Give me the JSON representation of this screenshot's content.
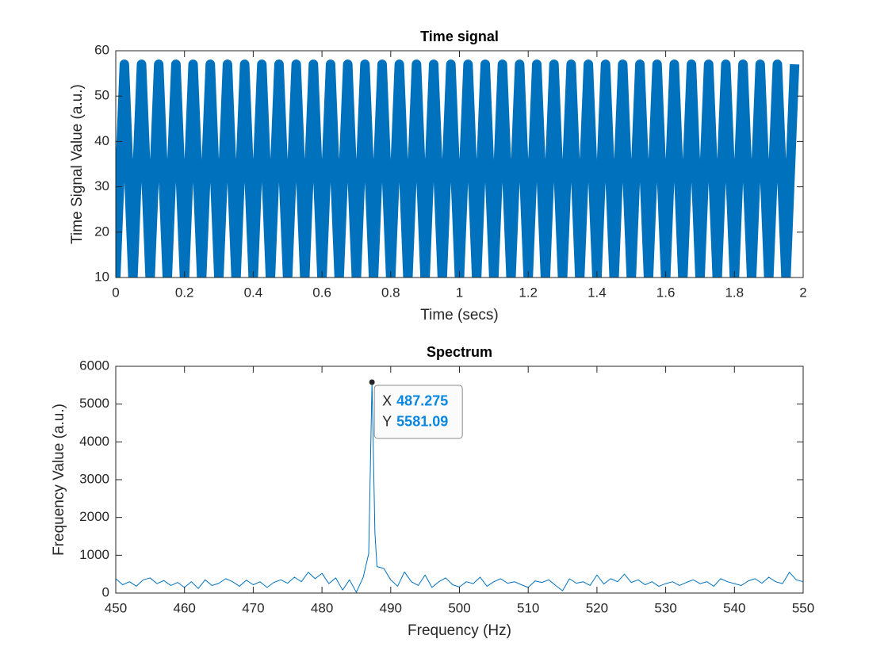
{
  "chart_data": [
    {
      "type": "line",
      "title": "Time signal",
      "x_label": "Time (secs)",
      "y_label": "Time Signal Value (a.u.)",
      "x": [
        0,
        0.025,
        0.05,
        0.075,
        0.1,
        0.125,
        0.15,
        0.175,
        0.2,
        0.225,
        0.25,
        0.275,
        0.3,
        0.325,
        0.35,
        0.375,
        0.4,
        0.425,
        0.45,
        0.475,
        0.5,
        0.525,
        0.55,
        0.575,
        0.6,
        0.625,
        0.65,
        0.675,
        0.7,
        0.725,
        0.75,
        0.775,
        0.8,
        0.825,
        0.85,
        0.875,
        0.9,
        0.925,
        0.95,
        0.975,
        1,
        1.025,
        1.05,
        1.075,
        1.1,
        1.125,
        1.15,
        1.175,
        1.2,
        1.225,
        1.25,
        1.275,
        1.3,
        1.325,
        1.35,
        1.375,
        1.4,
        1.425,
        1.45,
        1.475,
        1.5,
        1.525,
        1.55,
        1.575,
        1.6,
        1.625,
        1.65,
        1.675,
        1.7,
        1.725,
        1.75,
        1.775,
        1.8,
        1.825,
        1.85,
        1.875,
        1.9,
        1.925,
        1.95,
        1.975
      ],
      "series": [
        {
          "color": "#0072bd",
          "values": [
            10,
            57,
            10,
            57,
            10,
            57,
            10,
            57,
            10,
            57,
            10,
            57,
            10,
            57,
            10,
            57,
            10,
            57,
            10,
            57,
            10,
            57,
            10,
            57,
            10,
            57,
            10,
            57,
            10,
            57,
            10,
            57,
            10,
            57,
            10,
            57,
            10,
            57,
            10,
            57,
            10,
            57,
            10,
            57,
            10,
            57,
            10,
            57,
            10,
            57,
            10,
            57,
            10,
            57,
            10,
            57,
            10,
            57,
            10,
            57,
            10,
            57,
            10,
            57,
            10,
            57,
            10,
            57,
            10,
            57,
            10,
            57,
            10,
            57,
            10,
            57,
            10,
            57,
            10,
            57
          ]
        }
      ],
      "xlim": [
        0,
        2
      ],
      "xticks": [
        0,
        0.2,
        0.4,
        0.6,
        0.8,
        1,
        1.2,
        1.4,
        1.6,
        1.8,
        2
      ],
      "ylim": [
        10,
        60
      ],
      "yticks": [
        10,
        20,
        30,
        40,
        50,
        60
      ]
    },
    {
      "type": "line",
      "title": "Spectrum",
      "x_label": "Frequency (Hz)",
      "y_label": "Frequency Value (a.u.)",
      "x": [
        450,
        451,
        452,
        453,
        454,
        455,
        456,
        457,
        458,
        459,
        460,
        461,
        462,
        463,
        464,
        465,
        466,
        467,
        468,
        469,
        470,
        471,
        472,
        473,
        474,
        475,
        476,
        477,
        478,
        479,
        480,
        481,
        482,
        483,
        484,
        485,
        486,
        486.8,
        487.275,
        487.7,
        488,
        489,
        490,
        491,
        492,
        493,
        494,
        495,
        496,
        497,
        498,
        499,
        500,
        501,
        502,
        503,
        504,
        505,
        506,
        507,
        508,
        509,
        510,
        511,
        512,
        513,
        514,
        515,
        516,
        517,
        518,
        519,
        520,
        521,
        522,
        523,
        524,
        525,
        526,
        527,
        528,
        529,
        530,
        531,
        532,
        533,
        534,
        535,
        536,
        537,
        538,
        539,
        540,
        541,
        542,
        543,
        544,
        545,
        546,
        547,
        548,
        549,
        550
      ],
      "series": [
        {
          "color": "#0072bd",
          "values": [
            380,
            220,
            300,
            180,
            350,
            400,
            250,
            330,
            200,
            280,
            150,
            300,
            120,
            350,
            200,
            260,
            380,
            300,
            180,
            340,
            220,
            300,
            150,
            280,
            350,
            260,
            420,
            300,
            550,
            380,
            520,
            250,
            400,
            80,
            350,
            20,
            420,
            1050,
            5581.09,
            1600,
            700,
            650,
            350,
            180,
            560,
            300,
            200,
            480,
            150,
            300,
            400,
            220,
            160,
            300,
            250,
            420,
            180,
            300,
            380,
            260,
            300,
            220,
            150,
            320,
            280,
            350,
            200,
            60,
            380,
            260,
            300,
            200,
            480,
            240,
            380,
            300,
            500,
            280,
            350,
            220,
            300,
            180,
            250,
            300,
            200,
            280,
            350,
            250,
            300,
            180,
            380,
            300,
            250,
            200,
            320,
            380,
            260,
            420,
            300,
            250,
            550,
            350,
            300
          ]
        }
      ],
      "xlim": [
        450,
        550
      ],
      "xticks": [
        450,
        460,
        470,
        480,
        490,
        500,
        510,
        520,
        530,
        540,
        550
      ],
      "ylim": [
        0,
        6000
      ],
      "yticks": [
        0,
        1000,
        2000,
        3000,
        4000,
        5000,
        6000
      ],
      "datatip": {
        "x_label": "X",
        "x": 487.275,
        "y_label": "Y",
        "y": 5581.09
      }
    }
  ]
}
